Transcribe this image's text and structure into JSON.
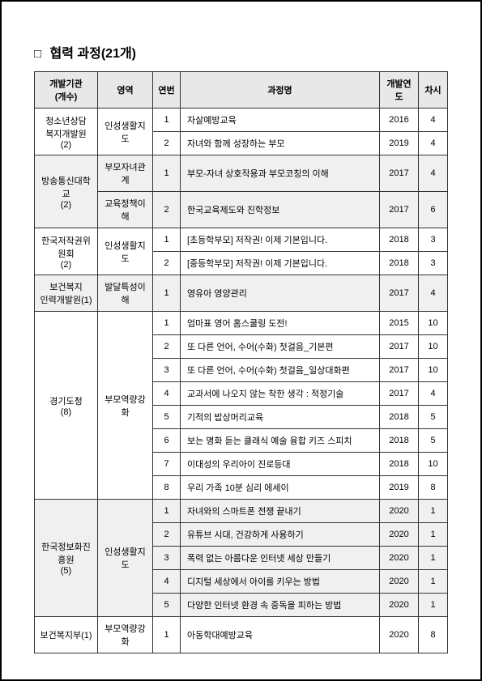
{
  "title": "협력 과정(21개)",
  "headers": {
    "inst": "개발기관\n(개수)",
    "area": "영역",
    "num": "연번",
    "name": "과정명",
    "year": "개발연도",
    "time": "차시"
  },
  "groups": [
    {
      "inst": "청소년상담\n복지개발원\n(2)",
      "shade": false,
      "areas": [
        {
          "area": "인성생활지도",
          "rows": [
            {
              "num": "1",
              "name": "자살예방교육",
              "year": "2016",
              "time": "4"
            },
            {
              "num": "2",
              "name": "자녀와 함께 성장하는 부모",
              "year": "2019",
              "time": "4"
            }
          ]
        }
      ]
    },
    {
      "inst": "방송통신대학교\n(2)",
      "shade": true,
      "areas": [
        {
          "area": "부모자녀관계",
          "rows": [
            {
              "num": "1",
              "name": "부모-자녀 상호작용과 부모코칭의 이해",
              "year": "2017",
              "time": "4"
            }
          ]
        },
        {
          "area": "교육정책이해",
          "rows": [
            {
              "num": "2",
              "name": "한국교육제도와 진학정보",
              "year": "2017",
              "time": "6"
            }
          ]
        }
      ]
    },
    {
      "inst": "한국저작권위원회\n(2)",
      "shade": false,
      "areas": [
        {
          "area": "인성생활지도",
          "rows": [
            {
              "num": "1",
              "name": "[초등학부모] 저작권! 이제 기본입니다.",
              "year": "2018",
              "time": "3"
            },
            {
              "num": "2",
              "name": "[중등학부모] 저작권! 이제 기본입니다.",
              "year": "2018",
              "time": "3"
            }
          ]
        }
      ]
    },
    {
      "inst": "보건복지\n인력개발원(1)",
      "shade": true,
      "areas": [
        {
          "area": "발달특성이해",
          "rows": [
            {
              "num": "1",
              "name": "영유아 영양관리",
              "year": "2017",
              "time": "4"
            }
          ]
        }
      ]
    },
    {
      "inst": "경기도청\n(8)",
      "shade": false,
      "areas": [
        {
          "area": "부모역량강화",
          "rows": [
            {
              "num": "1",
              "name": "엄마표 영어 홈스쿨링 도전!",
              "year": "2015",
              "time": "10"
            },
            {
              "num": "2",
              "name": "또 다른 언어, 수어(수화) 첫걸음_기본편",
              "year": "2017",
              "time": "10"
            },
            {
              "num": "3",
              "name": "또 다른 언어, 수어(수화) 첫걸음_일상대화편",
              "year": "2017",
              "time": "10"
            },
            {
              "num": "4",
              "name": "교과서에 나오지 않는 착한 생각 : 적정기술",
              "year": "2017",
              "time": "4"
            },
            {
              "num": "5",
              "name": "기적의 밥상머리교육",
              "year": "2018",
              "time": "5"
            },
            {
              "num": "6",
              "name": "보는 명화 듣는 클래식 예술 융합 키즈 스피치",
              "year": "2018",
              "time": "5"
            },
            {
              "num": "7",
              "name": "이대성의 우리아이 진로등대",
              "year": "2018",
              "time": "10"
            },
            {
              "num": "8",
              "name": "우리 가족 10분 심리 에세이",
              "year": "2019",
              "time": "8"
            }
          ]
        }
      ]
    },
    {
      "inst": "한국정보화진흥원\n(5)",
      "shade": true,
      "areas": [
        {
          "area": "인성생활지도",
          "rows": [
            {
              "num": "1",
              "name": "자녀와의 스마트폰 전쟁 끝내기",
              "year": "2020",
              "time": "1"
            },
            {
              "num": "2",
              "name": "유튜브 시대, 건강하게 사용하기",
              "year": "2020",
              "time": "1"
            },
            {
              "num": "3",
              "name": "폭력 없는 아름다운 인터넷 세상 만들기",
              "year": "2020",
              "time": "1"
            },
            {
              "num": "4",
              "name": "디지털 세상에서 아이를 키우는 방법",
              "year": "2020",
              "time": "1"
            },
            {
              "num": "5",
              "name": "다양한 인터넷 환경 속 중독을 피하는 방법",
              "year": "2020",
              "time": "1"
            }
          ]
        }
      ]
    },
    {
      "inst": "보건복지부(1)",
      "shade": false,
      "areas": [
        {
          "area": "부모역량강화",
          "rows": [
            {
              "num": "1",
              "name": "아동학대예방교육",
              "year": "2020",
              "time": "8"
            }
          ]
        }
      ]
    }
  ]
}
